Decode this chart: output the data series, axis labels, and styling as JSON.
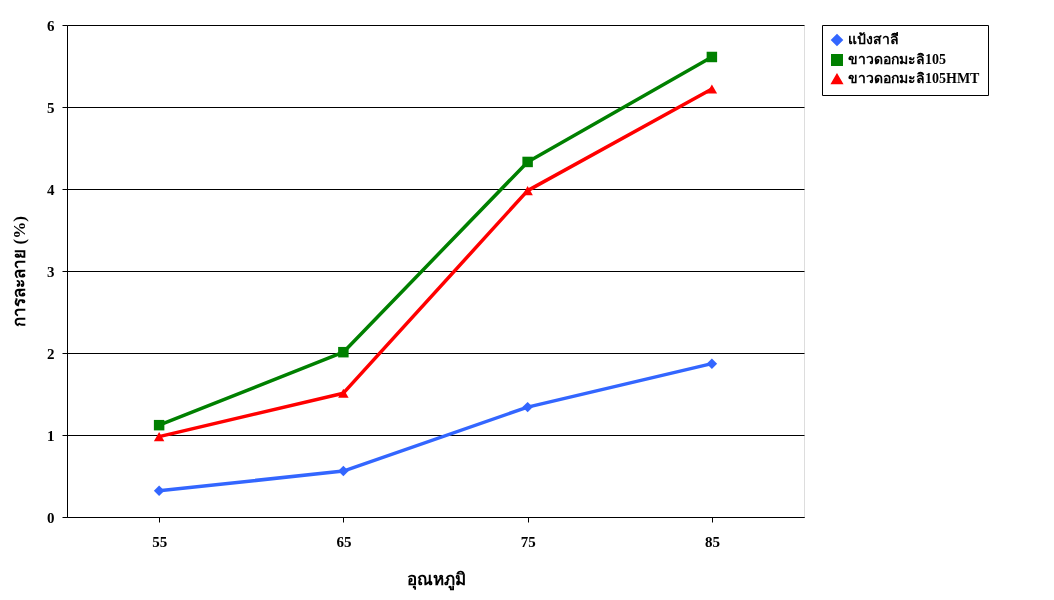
{
  "chart_data": {
    "type": "line",
    "xlabel": "อุณหภูมิ",
    "ylabel": "การละลาย (%)",
    "categories": [
      "55",
      "65",
      "75",
      "85"
    ],
    "series": [
      {
        "name": "แป้งสาลี",
        "color": "#3366ff",
        "marker": "diamond",
        "values": [
          0.32,
          0.56,
          1.34,
          1.87
        ]
      },
      {
        "name": "ขาวดอกมะลิ105",
        "color": "#008000",
        "marker": "square",
        "values": [
          1.12,
          2.01,
          4.33,
          5.61
        ]
      },
      {
        "name": "ขาวดอกมะลิ105HMT",
        "color": "#ff0000",
        "marker": "triangle",
        "values": [
          0.98,
          1.51,
          3.98,
          5.22
        ]
      }
    ],
    "ylim": [
      0,
      6
    ],
    "yticks": [
      0,
      1,
      2,
      3,
      4,
      5,
      6
    ],
    "grid": "y",
    "legend": "right",
    "line_style": "solid"
  }
}
